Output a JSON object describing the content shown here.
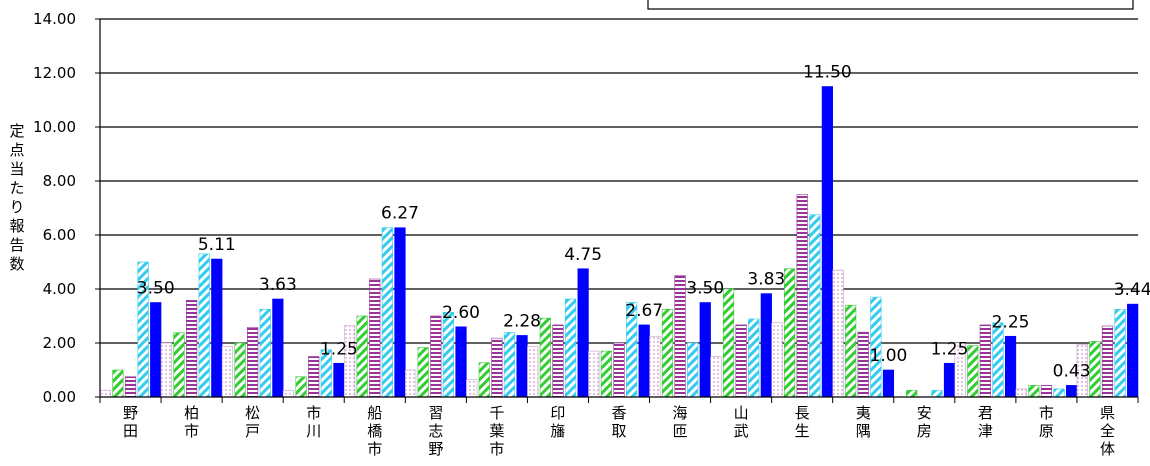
{
  "chart_data": {
    "type": "bar",
    "ylabel": "定点当たり報告数",
    "ylim": [
      0,
      14
    ],
    "ytick_labels": [
      "0.00",
      "2.00",
      "4.00",
      "6.00",
      "8.00",
      "10.00",
      "12.00",
      "14.00"
    ],
    "grid": true,
    "legend": "top-right (box with no visible text)",
    "categories": [
      "野田",
      "柏市",
      "松戸",
      "市川",
      "船橋市",
      "習志野",
      "千葉市",
      "印旛",
      "香取",
      "海匝",
      "山武",
      "長生",
      "夷隅",
      "安房",
      "君津",
      "市原",
      "県全体"
    ],
    "series": [
      {
        "values": [
          0.25,
          2.0,
          1.88,
          0.25,
          2.64,
          1.0,
          0.64,
          1.88,
          1.7,
          2.25,
          1.5,
          2.75,
          4.7,
          0.0,
          2.0,
          0.3,
          1.95
        ],
        "color": "#cc99cc",
        "pattern": "dots"
      },
      {
        "values": [
          1.0,
          2.38,
          2.0,
          0.75,
          3.0,
          1.83,
          1.27,
          2.92,
          1.7,
          3.25,
          4.0,
          4.75,
          3.4,
          0.25,
          1.9,
          0.43,
          2.06
        ],
        "color": "#33cc33",
        "pattern": "diagonal"
      },
      {
        "values": [
          0.75,
          3.58,
          2.58,
          1.5,
          4.37,
          3.0,
          2.18,
          2.67,
          2.0,
          4.5,
          2.67,
          7.5,
          2.4,
          0.0,
          2.67,
          0.43,
          2.63
        ],
        "color": "#993399",
        "pattern": "horizontal"
      },
      {
        "values": [
          5.0,
          5.3,
          3.25,
          1.75,
          6.27,
          3.14,
          2.39,
          3.63,
          3.5,
          2.0,
          2.89,
          6.75,
          3.7,
          0.25,
          2.75,
          0.3,
          3.25
        ],
        "color": "#33ccee",
        "pattern": "diagonal"
      },
      {
        "values": [
          3.5,
          5.11,
          3.63,
          1.25,
          6.27,
          2.6,
          2.28,
          4.75,
          2.67,
          3.5,
          3.83,
          11.5,
          1.0,
          1.25,
          2.25,
          0.43,
          3.44
        ],
        "color": "#0000ff",
        "pattern": "solid"
      }
    ],
    "data_labels": [
      "3.50",
      "5.11",
      "3.63",
      "1.25",
      "6.27",
      "2.60",
      "2.28",
      "4.75",
      "2.67",
      "3.50",
      "3.83",
      "11.50",
      "1.00",
      "1.25",
      "2.25",
      "0.43",
      "3.44"
    ]
  }
}
